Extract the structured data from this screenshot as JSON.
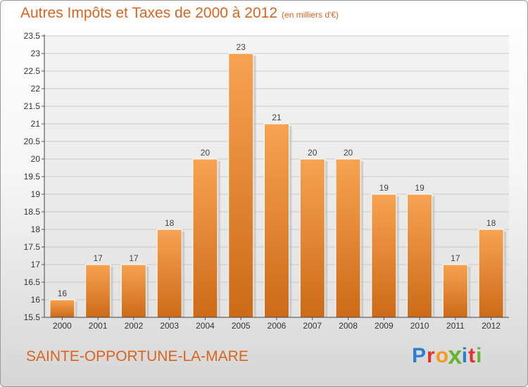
{
  "header": {
    "title": "Autres Impôts et Taxes de 2000 à 2012",
    "subtitle": "(en milliers d'€)"
  },
  "footer": {
    "city": "SAINTE-OPPORTUNE-LA-MARE",
    "logo_letters": [
      "P",
      "r",
      "o",
      "x",
      "i",
      "t",
      "i"
    ],
    "logo_colors": [
      "#2b7fcf",
      "#e8302d",
      "#f29a1b",
      "#69b530",
      "#2b7fcf",
      "#e8302d",
      "#69b530"
    ]
  },
  "chart_data": {
    "type": "bar",
    "categories": [
      "2000",
      "2001",
      "2002",
      "2003",
      "2004",
      "2005",
      "2006",
      "2007",
      "2008",
      "2009",
      "2010",
      "2011",
      "2012"
    ],
    "values": [
      16,
      17,
      17,
      18,
      20,
      23,
      21,
      20,
      20,
      19,
      19,
      17,
      18
    ],
    "data_labels": [
      "16",
      "17",
      "17",
      "18",
      "20",
      "23",
      "21",
      "20",
      "20",
      "19",
      "19",
      "17",
      "18"
    ],
    "yticks": [
      "15.5",
      "16",
      "16.5",
      "17",
      "17.5",
      "18",
      "18.5",
      "19",
      "19.5",
      "20",
      "20.5",
      "21",
      "21.5",
      "22",
      "22.5",
      "23",
      "23.5"
    ],
    "ylim": [
      15.5,
      23.5
    ],
    "grid": true,
    "bar_color_top": "#f7a352",
    "bar_color_bottom": "#cc6a18"
  }
}
